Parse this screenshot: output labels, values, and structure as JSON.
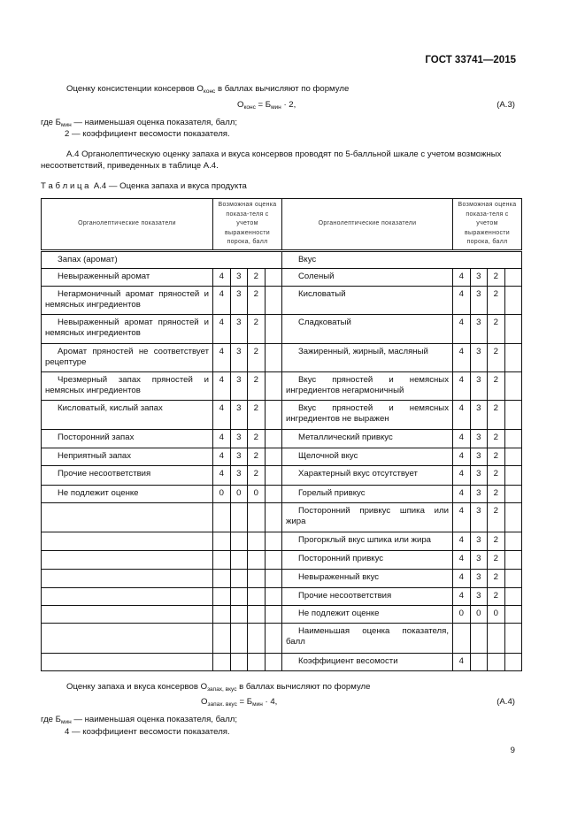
{
  "header": {
    "doc_id": "ГОСТ 33741—2015"
  },
  "p1": {
    "text_a": "Оценку консистенции консервов О",
    "sub_a": "конс",
    "text_b": " в баллах вычисляют по формуле"
  },
  "f1": {
    "o": "О",
    "o_sub": "конс",
    "eq": " = Б",
    "b_sub": "мин",
    "tail": " · 2,",
    "num": "(А.3)"
  },
  "w1": {
    "where": "где Б",
    "sub": "мин",
    "dash": " — наименьшая оценка показателя, балл;",
    "coef": "2 — коэффициент весомости показателя."
  },
  "a4": {
    "line1": "А.4 Органолептическую оценку запаха и вкуса консервов проводят по 5-балльной шкале с учетом возможных",
    "line2": "несоответствий, приведенных в таблице А.4."
  },
  "caption": {
    "label": "Т а б л и ц а",
    "title": "  А.4 — Оценка запаха и вкуса продукта"
  },
  "table": {
    "header": {
      "left": "Органолептические показатели",
      "scores": "Возможная оценка показа-теля с учетом выраженности порока, балл",
      "right": "Органолептические показатели"
    },
    "sections": {
      "left": "Запах (аромат)",
      "right": "Вкус"
    },
    "rows": [
      {
        "l": "Невыраженный аромат",
        "ls": [
          "4",
          "3",
          "2",
          ""
        ],
        "r": "Соленый",
        "rs": [
          "4",
          "3",
          "2",
          ""
        ]
      },
      {
        "l": "Негармоничный аромат пряностей и немясных ингредиентов",
        "ls": [
          "4",
          "3",
          "2",
          ""
        ],
        "r": "Кисловатый",
        "rs": [
          "4",
          "3",
          "2",
          ""
        ]
      },
      {
        "l": "Невыраженный аромат пряностей и немясных ингредиентов",
        "ls": [
          "4",
          "3",
          "2",
          ""
        ],
        "r": "Сладковатый",
        "rs": [
          "4",
          "3",
          "2",
          ""
        ]
      },
      {
        "l": "Аромат пряностей не соответствует рецептуре",
        "ls": [
          "4",
          "3",
          "2",
          ""
        ],
        "r": "Зажиренный, жирный, масляный",
        "rs": [
          "4",
          "3",
          "2",
          ""
        ]
      },
      {
        "l": "Чрезмерный запах пряностей и немясных ингредиентов",
        "ls": [
          "4",
          "3",
          "2",
          ""
        ],
        "r": "Вкус пряностей и немясных ингредиентов негармоничный",
        "rs": [
          "4",
          "3",
          "2",
          ""
        ]
      },
      {
        "l": "Кисловатый, кислый запах",
        "ls": [
          "4",
          "3",
          "2",
          ""
        ],
        "r": "Вкус пряностей и немясных ингредиентов не выражен",
        "rs": [
          "4",
          "3",
          "2",
          ""
        ]
      },
      {
        "l": "Посторонний запах",
        "ls": [
          "4",
          "3",
          "2",
          ""
        ],
        "r": "Металлический привкус",
        "rs": [
          "4",
          "3",
          "2",
          ""
        ]
      },
      {
        "l": "Неприятный запах",
        "ls": [
          "4",
          "3",
          "2",
          ""
        ],
        "r": "Щелочной вкус",
        "rs": [
          "4",
          "3",
          "2",
          ""
        ]
      },
      {
        "l": "Прочие несоответствия",
        "ls": [
          "4",
          "3",
          "2",
          ""
        ],
        "r": "Характерный вкус отсутствует",
        "rs": [
          "4",
          "3",
          "2",
          ""
        ]
      },
      {
        "l": "Не подлежит оценке",
        "ls": [
          "0",
          "0",
          "0",
          ""
        ],
        "r": "Горелый привкус",
        "rs": [
          "4",
          "3",
          "2",
          ""
        ]
      },
      {
        "l": "",
        "ls": [
          "",
          "",
          "",
          ""
        ],
        "r": "Посторонний привкус шпика или жира",
        "rs": [
          "4",
          "3",
          "2",
          ""
        ]
      },
      {
        "l": "",
        "ls": [
          "",
          "",
          "",
          ""
        ],
        "r": "Прогорклый вкус шпика или жира",
        "rs": [
          "4",
          "3",
          "2",
          ""
        ]
      },
      {
        "l": "",
        "ls": [
          "",
          "",
          "",
          ""
        ],
        "r": "Посторонний привкус",
        "rs": [
          "4",
          "3",
          "2",
          ""
        ]
      },
      {
        "l": "",
        "ls": [
          "",
          "",
          "",
          ""
        ],
        "r": "Невыраженный вкус",
        "rs": [
          "4",
          "3",
          "2",
          ""
        ]
      },
      {
        "l": "",
        "ls": [
          "",
          "",
          "",
          ""
        ],
        "r": "Прочие несоответствия",
        "rs": [
          "4",
          "3",
          "2",
          ""
        ]
      },
      {
        "l": "",
        "ls": [
          "",
          "",
          "",
          ""
        ],
        "r": "Не подлежит оценке",
        "rs": [
          "0",
          "0",
          "0",
          ""
        ]
      },
      {
        "l": "",
        "ls": [
          "",
          "",
          "",
          ""
        ],
        "r": "Наименьшая оценка показателя, балл",
        "rs": [
          "",
          "",
          "",
          ""
        ]
      },
      {
        "l": "",
        "ls": [
          "",
          "",
          "",
          ""
        ],
        "r": "Коэффициент весомости",
        "rs": [
          "4",
          "",
          "",
          ""
        ]
      }
    ]
  },
  "p2": {
    "text_a": "Оценку запаха и вкуса консервов О",
    "sub_a": "запах, вкус",
    "text_b": " в баллах вычисляют по формуле"
  },
  "f2": {
    "o": "О",
    "o_sub": "запах. вкус",
    "eq": " = Б",
    "b_sub": "мин",
    "tail": " · 4,",
    "num": "(А.4)"
  },
  "w2": {
    "where": "где Б",
    "sub": "мин",
    "dash": " — наименьшая оценка показателя, балл;",
    "coef": "4 — коэффициент весомости показателя."
  },
  "footer": {
    "page": "9"
  }
}
